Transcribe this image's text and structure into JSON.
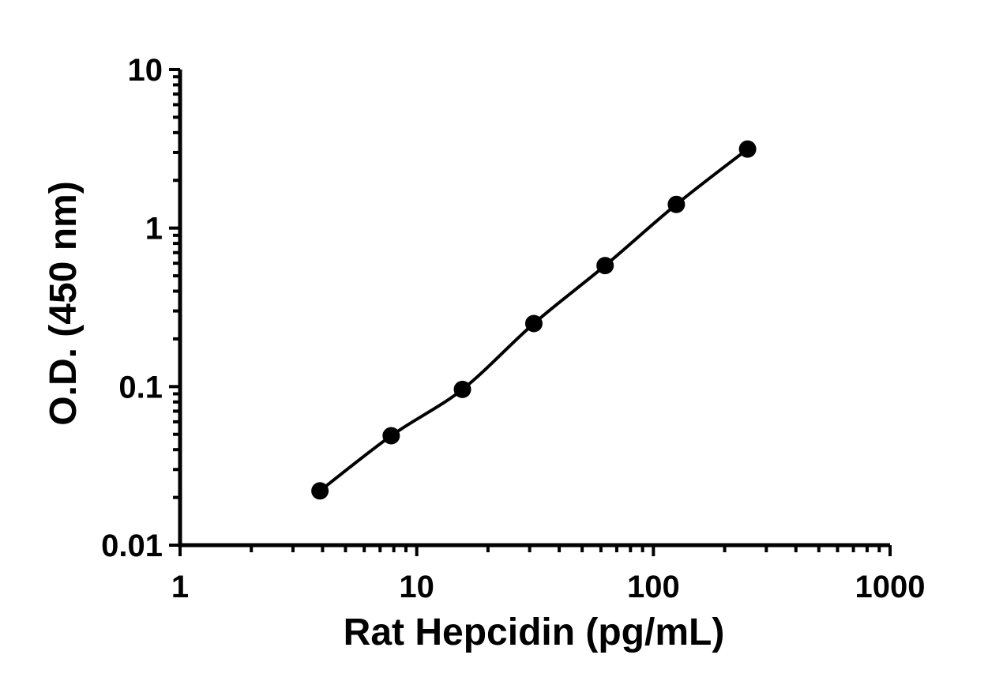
{
  "chart_data": {
    "type": "scatter",
    "xlabel": "Rat Hepcidin (pg/mL)",
    "ylabel": "O.D. (450 nm)",
    "x_scale": "log",
    "y_scale": "log",
    "xlim": [
      1,
      1000
    ],
    "ylim": [
      0.01,
      10
    ],
    "x_ticks": [
      "1",
      "10",
      "100",
      "1000"
    ],
    "y_ticks": [
      "0.01",
      "0.1",
      "1",
      "10"
    ],
    "grid": false,
    "legend": "none",
    "series": [
      {
        "x": [
          3.9,
          7.8,
          15.6,
          31.25,
          62.5,
          125,
          250
        ],
        "y": [
          0.022,
          0.049,
          0.096,
          0.25,
          0.58,
          1.41,
          3.15
        ],
        "fit": "curve",
        "color": "#000000"
      }
    ]
  }
}
